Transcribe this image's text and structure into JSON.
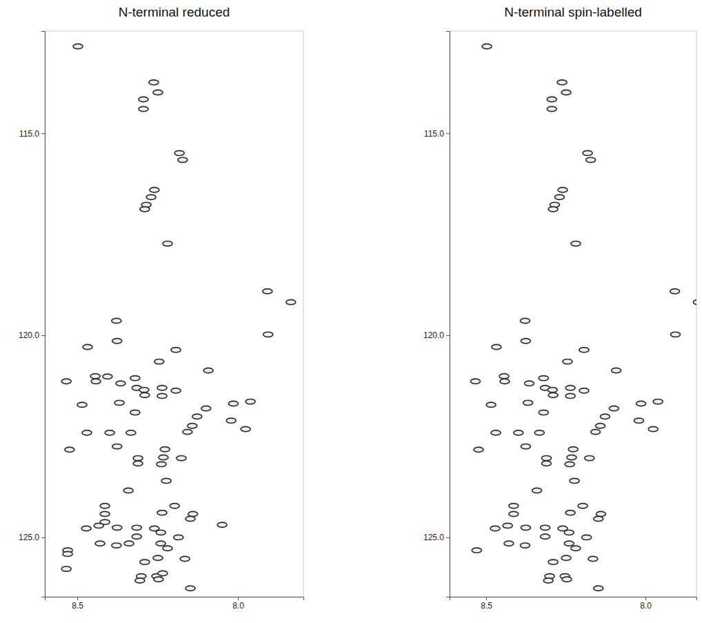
{
  "chart_data": [
    {
      "type": "scatter",
      "title": "N-terminal reduced",
      "color": "#2b2b2b",
      "marker": "ellipse",
      "xlim": [
        8.601,
        7.796
      ],
      "ylim": [
        126.47,
        112.47
      ],
      "xticks": [
        8.5,
        {
          "value": 8,
          "label": "8.0"
        }
      ],
      "yticks": [
        {
          "value": 115,
          "label": "115.0"
        },
        {
          "value": 120,
          "label": "120.0"
        },
        {
          "value": 125,
          "label": "125.0"
        }
      ],
      "x": [
        8.498,
        8.262,
        8.249,
        8.294,
        8.294,
        8.182,
        8.172,
        8.26,
        8.27,
        8.285,
        8.29,
        8.219,
        7.908,
        7.835,
        7.906,
        8.378,
        8.468,
        8.376,
        8.193,
        8.245,
        8.092,
        8.534,
        8.444,
        8.442,
        8.365,
        8.32,
        8.315,
        8.292,
        8.236,
        8.193,
        8.29,
        8.236,
        8.406,
        8.099,
        8.014,
        7.961,
        8.127,
        8.142,
        8.157,
        8.32,
        8.369,
        8.485,
        7.976,
        8.021,
        8.47,
        8.399,
        8.333,
        8.376,
        8.524,
        8.227,
        8.311,
        8.232,
        8.176,
        8.311,
        8.238,
        8.223,
        8.341,
        8.197,
        8.236,
        8.414,
        8.414,
        8.414,
        8.14,
        8.148,
        8.472,
        8.433,
        8.376,
        8.315,
        8.26,
        8.049,
        8.429,
        8.378,
        8.315,
        8.24,
        8.185,
        8.24,
        8.219,
        8.53,
        8.53,
        8.29,
        8.249,
        8.165,
        8.534,
        8.301,
        8.305,
        8.253,
        8.247,
        8.234,
        8.148,
        8.339
      ],
      "values": [
        112.85,
        113.74,
        113.99,
        114.16,
        114.4,
        115.49,
        115.66,
        116.4,
        116.58,
        116.77,
        116.88,
        117.73,
        118.91,
        119.18,
        119.98,
        119.64,
        120.29,
        120.14,
        120.36,
        120.65,
        120.87,
        121.14,
        121.01,
        121.14,
        121.19,
        121.06,
        121.3,
        121.35,
        121.3,
        121.37,
        121.48,
        121.5,
        121.02,
        121.81,
        121.69,
        121.64,
        122.01,
        122.24,
        122.39,
        121.91,
        121.67,
        121.72,
        122.32,
        122.11,
        122.41,
        122.41,
        122.41,
        122.75,
        122.83,
        122.82,
        123.04,
        123.02,
        123.04,
        123.17,
        123.19,
        123.6,
        123.84,
        124.22,
        124.39,
        124.22,
        124.42,
        124.62,
        124.42,
        124.54,
        124.78,
        124.71,
        124.76,
        124.76,
        124.78,
        124.69,
        125.15,
        125.2,
        124.98,
        124.88,
        125.0,
        125.15,
        125.27,
        125.32,
        125.41,
        125.61,
        125.51,
        125.53,
        125.78,
        125.96,
        126.07,
        125.96,
        126.04,
        125.89,
        126.26,
        125.15
      ]
    },
    {
      "type": "scatter",
      "title": "N-terminal spin-labelled",
      "color": "#2b2b2b",
      "marker": "ellipse",
      "xlim": [
        8.615,
        7.84
      ],
      "ylim": [
        126.47,
        112.47
      ],
      "xticks": [
        8.5,
        {
          "value": 8,
          "label": "8.0"
        }
      ],
      "yticks": [
        {
          "value": 115,
          "label": "115.0"
        },
        {
          "value": 120,
          "label": "120.0"
        },
        {
          "value": 125,
          "label": "125.0"
        }
      ],
      "x": [
        8.498,
        8.262,
        8.249,
        8.294,
        8.294,
        8.182,
        8.172,
        8.26,
        8.27,
        8.285,
        8.29,
        8.219,
        7.908,
        7.835,
        7.906,
        8.378,
        8.468,
        8.376,
        8.193,
        8.245,
        8.092,
        8.534,
        8.444,
        8.442,
        8.365,
        8.32,
        8.315,
        8.292,
        8.236,
        8.193,
        8.29,
        8.236,
        8.099,
        8.014,
        7.961,
        8.127,
        8.142,
        8.157,
        8.32,
        8.369,
        8.485,
        7.976,
        8.021,
        8.47,
        8.399,
        8.333,
        8.376,
        8.524,
        8.227,
        8.311,
        8.232,
        8.176,
        8.311,
        8.238,
        8.223,
        8.341,
        8.197,
        8.236,
        8.414,
        8.414,
        8.14,
        8.148,
        8.472,
        8.433,
        8.376,
        8.315,
        8.26,
        8.429,
        8.378,
        8.315,
        8.24,
        8.185,
        8.24,
        8.219,
        8.53,
        8.29,
        8.249,
        8.165,
        8.301,
        8.305,
        8.253,
        8.247,
        8.148
      ],
      "values": [
        112.85,
        113.74,
        113.99,
        114.16,
        114.4,
        115.49,
        115.66,
        116.4,
        116.58,
        116.77,
        116.88,
        117.73,
        118.91,
        119.18,
        119.98,
        119.64,
        120.29,
        120.14,
        120.36,
        120.65,
        120.87,
        121.14,
        121.01,
        121.14,
        121.19,
        121.06,
        121.3,
        121.35,
        121.3,
        121.37,
        121.48,
        121.5,
        121.81,
        121.69,
        121.64,
        122.01,
        122.24,
        122.39,
        121.91,
        121.67,
        121.72,
        122.32,
        122.11,
        122.41,
        122.41,
        122.41,
        122.75,
        122.83,
        122.82,
        123.04,
        123.02,
        123.04,
        123.17,
        123.19,
        123.6,
        123.84,
        124.22,
        124.39,
        124.22,
        124.42,
        124.42,
        124.54,
        124.78,
        124.71,
        124.76,
        124.76,
        124.78,
        125.15,
        125.2,
        124.98,
        124.88,
        125.0,
        125.15,
        125.27,
        125.32,
        125.61,
        125.51,
        125.53,
        125.96,
        126.07,
        125.96,
        126.04,
        126.26
      ]
    }
  ]
}
